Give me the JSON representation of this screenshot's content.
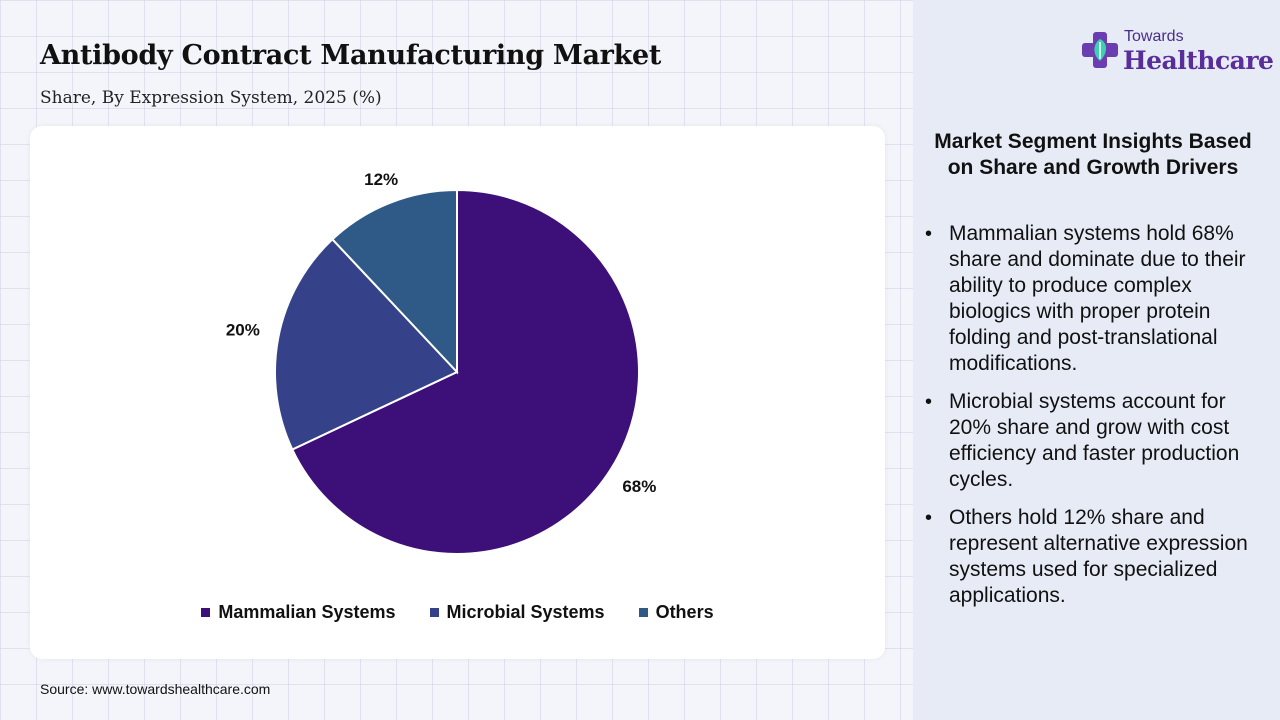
{
  "header": {
    "title": "Antibody Contract Manufacturing Market",
    "subtitle": "Share, By Expression System, 2025 (%)"
  },
  "chart_data": {
    "type": "pie",
    "title": "Antibody Contract Manufacturing Market",
    "subtitle": "Share, By Expression System, 2025 (%)",
    "unit": "%",
    "categories": [
      "Mammalian Systems",
      "Microbial Systems",
      "Others"
    ],
    "values": [
      68,
      20,
      12
    ],
    "labels": [
      "68%",
      "20%",
      "12%"
    ],
    "colors": [
      "#3d0f78",
      "#35428a",
      "#2f5a88"
    ],
    "start": "top, clockwise",
    "legend_position": "bottom"
  },
  "source": "Source: www.towardshealthcare.com",
  "logo": {
    "top_text": "Towards",
    "main_text": "Healthcare",
    "icon": "health-cross-icon"
  },
  "insights": {
    "title": "Market Segment Insights Based on Share and Growth Drivers",
    "items": [
      "Mammalian systems hold 68% share and dominate due to their ability to produce complex biologics with proper protein folding and post-translational modifications.",
      "Microbial systems account for 20% share and grow with cost efficiency and faster production cycles.",
      "Others hold 12% share and represent alternative expression systems used for specialized applications."
    ]
  }
}
